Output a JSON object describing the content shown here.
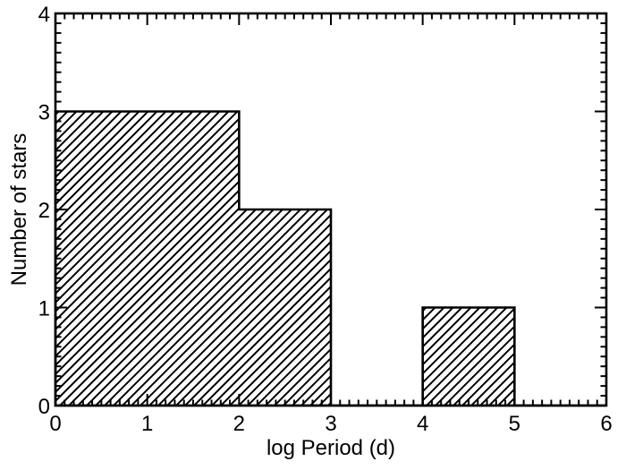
{
  "figure": {
    "background_color": "#ffffff",
    "line_color": "#000000"
  },
  "chart_data": {
    "type": "bar",
    "subtype": "step-histogram",
    "title": "",
    "xlabel": "log Period (d)",
    "ylabel": "Number of stars",
    "xlim": [
      0,
      6
    ],
    "ylim": [
      0,
      4
    ],
    "grid": false,
    "legend": false,
    "categories": [
      "0-2",
      "2-3",
      "3-4",
      "4-5",
      "5-6"
    ],
    "values": [
      3,
      2,
      0,
      1,
      0
    ],
    "bins": [
      {
        "x0": 0,
        "x1": 2,
        "count": 3
      },
      {
        "x0": 2,
        "x1": 3,
        "count": 2
      },
      {
        "x0": 3,
        "x1": 4,
        "count": 0
      },
      {
        "x0": 4,
        "x1": 5,
        "count": 1
      },
      {
        "x0": 5,
        "x1": 6,
        "count": 0
      }
    ],
    "xticks": {
      "major": [
        0,
        1,
        2,
        3,
        4,
        5,
        6
      ],
      "labels": [
        "0",
        "1",
        "2",
        "3",
        "4",
        "5",
        "6"
      ],
      "minor_step": 0.1
    },
    "yticks": {
      "major": [
        0,
        1,
        2,
        3,
        4
      ],
      "labels": [
        "0",
        "1",
        "2",
        "3",
        "4"
      ],
      "minor_step": 0.1
    },
    "fill_style": "diagonal-hatch-forward",
    "stroke_color": "#000000"
  }
}
